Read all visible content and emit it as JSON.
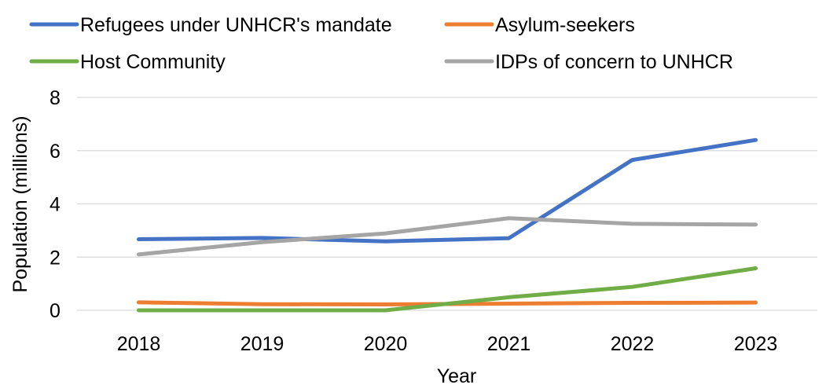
{
  "chart_data": {
    "type": "line",
    "title": "",
    "xlabel": "Year",
    "ylabel": "Population (millions)",
    "categories": [
      "2018",
      "2019",
      "2020",
      "2021",
      "2022",
      "2023"
    ],
    "ylim": [
      0,
      8
    ],
    "yticks": [
      "0",
      "2",
      "4",
      "6",
      "8"
    ],
    "grid": "horizontal",
    "legend": "top",
    "series": [
      {
        "name": "Refugees under UNHCR's mandate",
        "color": "#4472C4",
        "values": [
          2.67,
          2.72,
          2.59,
          2.71,
          5.65,
          6.4
        ]
      },
      {
        "name": "Asylum-seekers",
        "color": "#ED7D31",
        "values": [
          0.3,
          0.23,
          0.22,
          0.25,
          0.28,
          0.29
        ]
      },
      {
        "name": "Host Community",
        "color": "#70AD47",
        "values": [
          0.0,
          0.0,
          0.0,
          0.49,
          0.88,
          1.58
        ]
      },
      {
        "name": "IDPs of concern to UNHCR",
        "color": "#A5A5A5",
        "values": [
          2.1,
          2.56,
          2.89,
          3.46,
          3.25,
          3.22
        ]
      }
    ]
  }
}
